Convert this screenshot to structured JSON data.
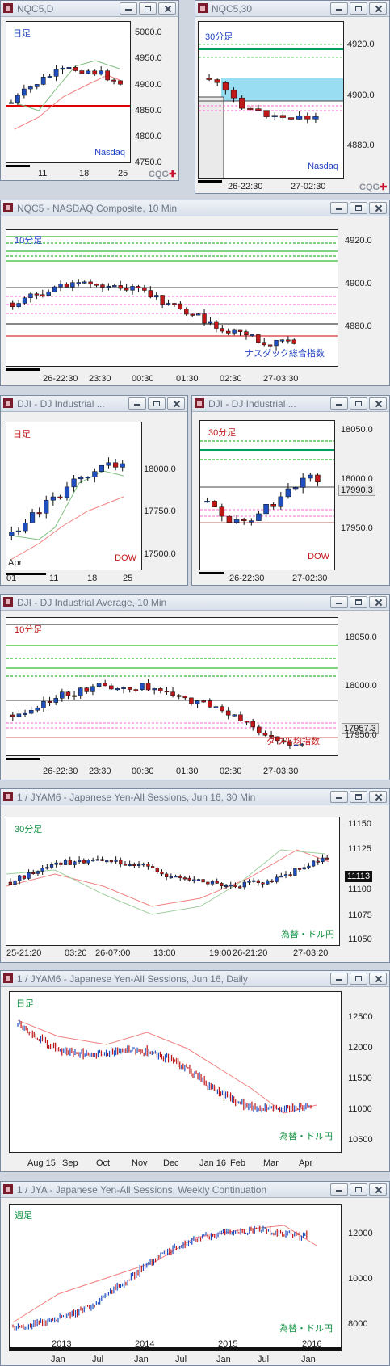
{
  "windows": {
    "nqc_d": {
      "title": "NQC5,D",
      "period": "日足",
      "series": "Nasdaq",
      "yticks": [
        "5000.0",
        "4950.0",
        "4900.0",
        "4850.0",
        "4800.0",
        "4750.0"
      ],
      "xticks": [
        "11",
        "18",
        "25"
      ]
    },
    "nqc_30": {
      "title": "NQC5,30",
      "period": "30分足",
      "series": "Nasdaq",
      "yticks": [
        "4920.0",
        "4900.0",
        "4880.0"
      ],
      "xticks": [
        "26-22:30",
        "27-02:30"
      ]
    },
    "nqc_10": {
      "title": "NQC5 - NASDAQ Composite, 10 Min",
      "period": "10分足",
      "series": "ナスダック総合指数",
      "yticks": [
        "4920.0",
        "4900.0",
        "4880.0"
      ],
      "xticks": [
        "26-22:30",
        "23:30",
        "00:30",
        "01:30",
        "02:30",
        "27-03:30"
      ]
    },
    "dji_d": {
      "title": "DJI - DJ Industrial ...",
      "period": "日足",
      "series": "DOW",
      "yticks": [
        "18000.0",
        "17750.0",
        "17500.0"
      ],
      "xticks": [
        "Apr",
        "01",
        "11",
        "18",
        "25"
      ]
    },
    "dji_30": {
      "title": "DJI - DJ Industrial ...",
      "period": "30分足",
      "series": "DOW",
      "yticks": [
        "18050.0",
        "18000.0",
        "17950.0"
      ],
      "last": "17990.3",
      "xticks": [
        "26-22:30",
        "27-02:30"
      ]
    },
    "dji_10": {
      "title": "DJI - DJ Industrial Average, 10 Min",
      "period": "10分足",
      "series": "ダウ平均指数",
      "yticks": [
        "18050.0",
        "18000.0",
        "17950.0"
      ],
      "last": "17957.3",
      "xticks": [
        "26-22:30",
        "23:30",
        "00:30",
        "01:30",
        "02:30",
        "27-03:30"
      ]
    },
    "jya_30": {
      "title": "1 / JYAM6 - Japanese Yen-All Sessions, Jun 16, 30 Min",
      "period": "30分足",
      "series": "為替・ドル円",
      "yticks": [
        "11150",
        "11125",
        "11100",
        "11075",
        "11050"
      ],
      "last": "11113",
      "xticks": [
        "25-21:20",
        "03:20",
        "26-07:00",
        "13:00",
        "19:00",
        "26-21:20",
        "27-03:20"
      ]
    },
    "jya_d": {
      "title": "1 / JYAM6 - Japanese Yen-All Sessions, Jun 16, Daily",
      "period": "日足",
      "series": "為替・ドル円",
      "yticks": [
        "12500",
        "12000",
        "11500",
        "11000",
        "10500"
      ],
      "xticks": [
        "Aug 15",
        "Sep",
        "Oct",
        "Nov",
        "Dec",
        "Jan 16",
        "Feb",
        "Mar",
        "Apr"
      ]
    },
    "jya_w": {
      "title": "1 / JYA - Japanese Yen-All Sessions, Weekly Continuation",
      "period": "週足",
      "series": "為替・ドル円",
      "yticks": [
        "12000",
        "10000",
        "8000"
      ],
      "years": [
        "2013",
        "2014",
        "2015",
        "2016"
      ],
      "xticks": [
        "Jan",
        "Jul",
        "Jan",
        "Jul",
        "Jan",
        "Jul",
        "Jan"
      ]
    }
  },
  "brand": {
    "text": "CQG",
    "mark": "✚"
  },
  "colors": {
    "up": "#1f4fbf",
    "down": "#c01818",
    "accent": "#00a060"
  }
}
